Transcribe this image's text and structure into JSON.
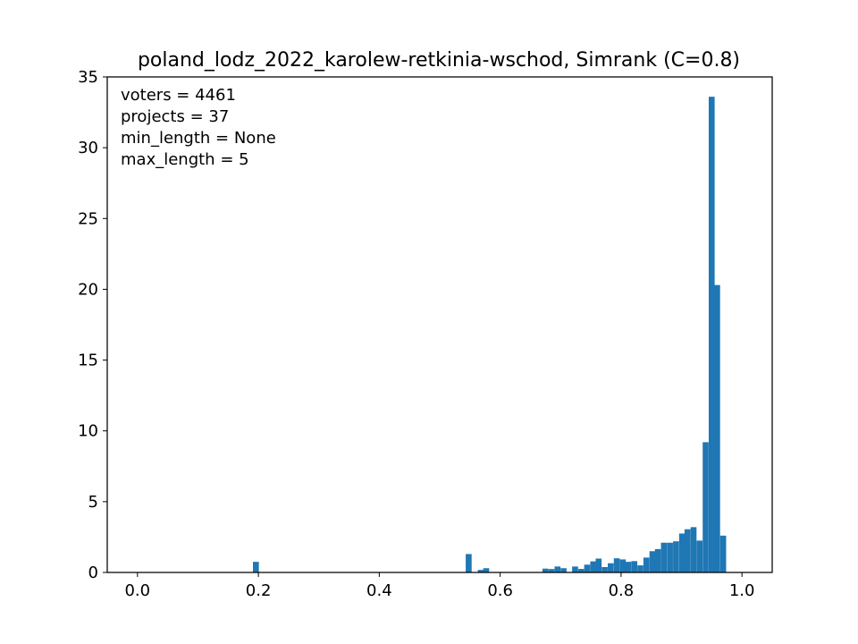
{
  "chart_data": {
    "type": "bar",
    "title": "poland_lodz_2022_karolew-retkinia-wschod, Simrank (C=0.8)",
    "xlabel": "",
    "ylabel": "",
    "xlim": [
      -0.05,
      1.05
    ],
    "ylim": [
      0,
      35
    ],
    "x_ticks": [
      "0.0",
      "0.2",
      "0.4",
      "0.6",
      "0.8",
      "1.0"
    ],
    "y_ticks": [
      "0",
      "5",
      "10",
      "15",
      "20",
      "25",
      "30",
      "35"
    ],
    "bar_color": "#1f77b4",
    "bin_width": 0.0098,
    "bins": [
      {
        "x": 0.191,
        "h": 0.75
      },
      {
        "x": 0.543,
        "h": 1.3
      },
      {
        "x": 0.563,
        "h": 0.18
      },
      {
        "x": 0.572,
        "h": 0.3
      },
      {
        "x": 0.67,
        "h": 0.27
      },
      {
        "x": 0.68,
        "h": 0.24
      },
      {
        "x": 0.69,
        "h": 0.42
      },
      {
        "x": 0.7,
        "h": 0.3
      },
      {
        "x": 0.719,
        "h": 0.42
      },
      {
        "x": 0.729,
        "h": 0.25
      },
      {
        "x": 0.739,
        "h": 0.55
      },
      {
        "x": 0.749,
        "h": 0.78
      },
      {
        "x": 0.758,
        "h": 0.98
      },
      {
        "x": 0.768,
        "h": 0.38
      },
      {
        "x": 0.778,
        "h": 0.65
      },
      {
        "x": 0.788,
        "h": 1.0
      },
      {
        "x": 0.798,
        "h": 0.92
      },
      {
        "x": 0.807,
        "h": 0.75
      },
      {
        "x": 0.817,
        "h": 0.8
      },
      {
        "x": 0.827,
        "h": 0.5
      },
      {
        "x": 0.837,
        "h": 1.05
      },
      {
        "x": 0.847,
        "h": 1.5
      },
      {
        "x": 0.856,
        "h": 1.65
      },
      {
        "x": 0.866,
        "h": 2.1
      },
      {
        "x": 0.876,
        "h": 2.1
      },
      {
        "x": 0.886,
        "h": 2.2
      },
      {
        "x": 0.896,
        "h": 2.75
      },
      {
        "x": 0.905,
        "h": 3.05
      },
      {
        "x": 0.915,
        "h": 3.2
      },
      {
        "x": 0.925,
        "h": 2.25
      },
      {
        "x": 0.935,
        "h": 9.2
      },
      {
        "x": 0.945,
        "h": 33.6
      },
      {
        "x": 0.954,
        "h": 20.3
      },
      {
        "x": 0.964,
        "h": 2.6
      }
    ],
    "annotations": [
      "voters = 4461",
      "projects = 37",
      "min_length = None",
      "max_length = 5"
    ]
  }
}
